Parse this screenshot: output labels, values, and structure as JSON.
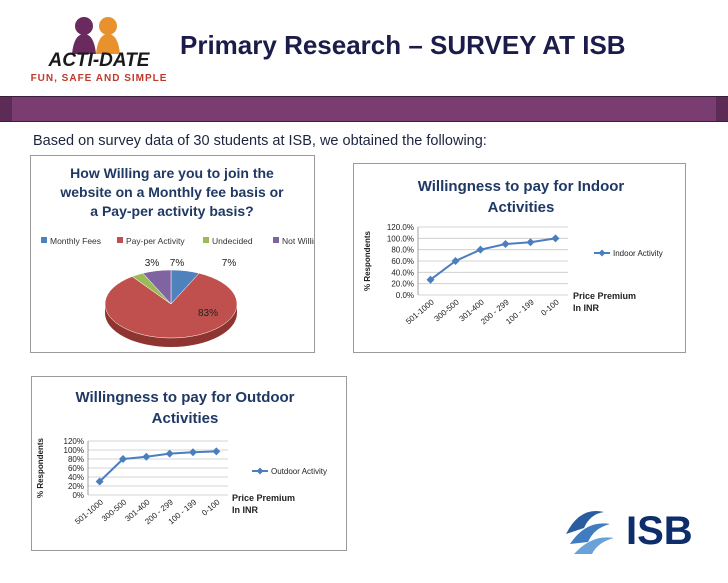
{
  "page": {
    "title": "Primary Research – SURVEY AT ISB",
    "intro": "Based on survey data of 30 students at ISB, we obtained the following:",
    "logo": {
      "name": "ACTI-DATE",
      "tagline": "FUN, SAFE AND SIMPLE"
    },
    "isb_logo": {
      "text": "ISB"
    },
    "colors": {
      "band": "#7a3d72",
      "title": "#1c1c4a",
      "series": "#4a7ebf",
      "pie_red": "#c0504d",
      "pie_blue": "#4f81bd",
      "pie_green": "#9bbb59",
      "pie_purple": "#8064a2"
    }
  },
  "chart_data": [
    {
      "type": "pie",
      "title_lines": [
        "How Willing are you to join the",
        "website on a Monthly fee basis or",
        "a Pay-per activity basis?"
      ],
      "legend": [
        "Monthly Fees",
        "Pay-per Activity",
        "Undecided",
        "Not Willing"
      ],
      "values": [
        7,
        83,
        3,
        7
      ],
      "data_labels": [
        "7%",
        "83%",
        "3%",
        "7%"
      ],
      "colors": [
        "#4f81bd",
        "#c0504d",
        "#9bbb59",
        "#8064a2"
      ],
      "legend_position": "top"
    },
    {
      "type": "line",
      "title_lines": [
        "Willingness to pay for Indoor",
        "Activities"
      ],
      "ylabel": "% Respondents",
      "xlabel_lines": [
        "Price Premium",
        "In INR"
      ],
      "categories": [
        "501-1000",
        "300-500",
        "301-400",
        "200 - 299",
        "100 - 199",
        "0-100"
      ],
      "series": [
        {
          "name": "Indoor Activity",
          "values": [
            27,
            60,
            80,
            90,
            93,
            100
          ]
        }
      ],
      "ylim": [
        0,
        120
      ],
      "yticks": [
        "0.0%",
        "20.0%",
        "40.0%",
        "60.0%",
        "80.0%",
        "100.0%",
        "120.0%"
      ],
      "grid": true,
      "legend_position": "right"
    },
    {
      "type": "line",
      "title_lines": [
        "Willingness to pay for Outdoor",
        "Activities"
      ],
      "ylabel": "% Respondents",
      "xlabel_lines": [
        "Price Premium",
        "In INR"
      ],
      "categories": [
        "501-1000",
        "300-500",
        "301-400",
        "200 - 299",
        "100 - 199",
        "0-100"
      ],
      "series": [
        {
          "name": "Outdoor Activity",
          "values": [
            30,
            80,
            85,
            92,
            95,
            97
          ]
        }
      ],
      "ylim": [
        0,
        120
      ],
      "yticks": [
        "0%",
        "20%",
        "40%",
        "60%",
        "80%",
        "100%",
        "120%"
      ],
      "grid": true,
      "legend_position": "right"
    }
  ]
}
